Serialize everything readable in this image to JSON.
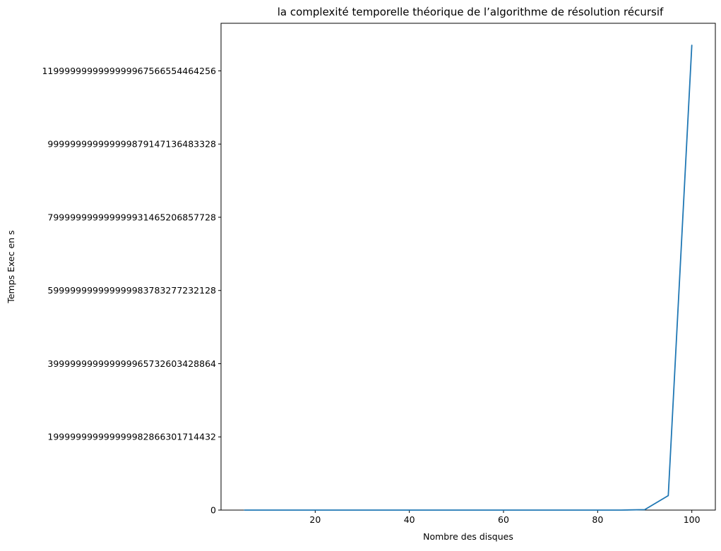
{
  "chart_data": {
    "type": "line",
    "title": "la complexité temporelle théorique de l’algorithme de résolution récursif",
    "xlabel": "Nombre des disques",
    "ylabel": "Temps Exec en s",
    "xlim": [
      0,
      105
    ],
    "ylim": [
      0,
      1.33e+30
    ],
    "grid": false,
    "x_ticks": [
      20,
      40,
      60,
      80,
      100
    ],
    "x_tick_labels": [
      "20",
      "40",
      "60",
      "80",
      "100"
    ],
    "y_ticks": [
      0,
      2e+29,
      4e+29,
      6e+29,
      8e+29,
      1e+30,
      1.2e+30
    ],
    "y_tick_labels": [
      "0",
      "199999999999999982866301714432",
      "399999999999999965732603428864",
      "599999999999999983783277232128",
      "799999999999999931465206857728",
      "999999999999999879147136483328",
      "1199999999999999967566554464256"
    ],
    "series": [
      {
        "color": "#1f77b4",
        "x": [
          5,
          10,
          15,
          20,
          25,
          30,
          35,
          40,
          45,
          50,
          55,
          60,
          65,
          70,
          75,
          80,
          85,
          90,
          95,
          100
        ],
        "y": [
          0,
          0,
          0,
          0,
          0,
          0,
          0,
          0,
          0,
          0,
          0,
          0,
          0,
          0,
          0,
          0,
          0,
          1.2e+27,
          3.96e+28,
          1.27e+30
        ]
      }
    ]
  }
}
